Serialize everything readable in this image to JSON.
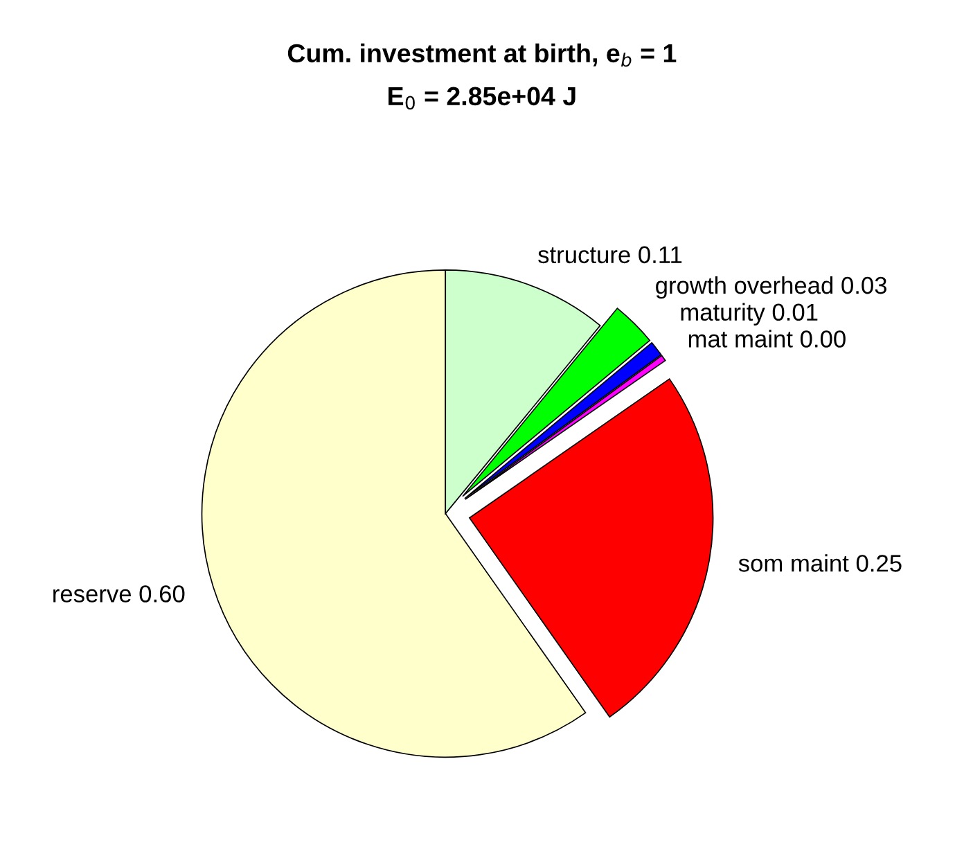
{
  "chart_data": {
    "type": "pie",
    "title": "Cum. investment at birth, e$_{b}$ = 1",
    "subtitle": "E$_{0}$ = 2.85e+04 J",
    "categories": [
      "reserve",
      "som maint",
      "mat maint",
      "maturity",
      "growth overhead",
      "structure"
    ],
    "values": [
      0.6,
      0.25,
      0.004,
      0.01,
      0.03,
      0.11
    ],
    "value_labels": [
      "0.60",
      "0.25",
      "0.00",
      "0.01",
      "0.03",
      "0.11"
    ],
    "colors": [
      "#ffffcc",
      "#ff0000",
      "#ff00ff",
      "#0000ff",
      "#00ff00",
      "#ccffcc"
    ]
  }
}
